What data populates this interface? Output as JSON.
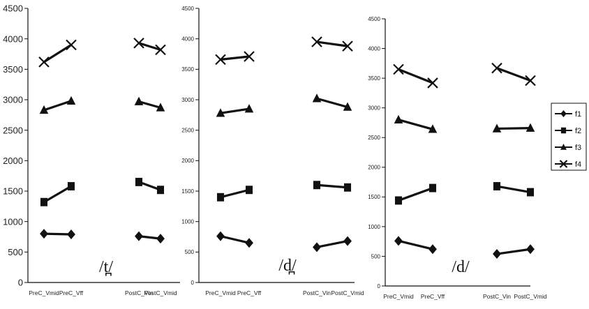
{
  "chart_data": [
    {
      "type": "line",
      "title": "/t̪/",
      "categories": [
        "PreC_Vmid",
        "PreC_Vff",
        "PostC_Vin",
        "PostC_Vmid"
      ],
      "yticks": [
        "0",
        "500",
        "1000",
        "1500",
        "2000",
        "2500",
        "3000",
        "3500",
        "4000",
        "4500"
      ],
      "ylim": [
        0,
        4500
      ],
      "series": [
        {
          "name": "f1",
          "values": [
            800,
            790,
            760,
            720
          ]
        },
        {
          "name": "f2",
          "values": [
            1320,
            1580,
            1650,
            1520
          ]
        },
        {
          "name": "f3",
          "values": [
            2830,
            2980,
            2970,
            2870
          ]
        },
        {
          "name": "f4",
          "values": [
            3620,
            3900,
            3930,
            3820
          ]
        }
      ]
    },
    {
      "type": "line",
      "title": "/d̪/",
      "categories": [
        "PreC_Vmid",
        "PreC_Vff",
        "PostC_Vin",
        "PostC_Vmid"
      ],
      "yticks": [
        "0",
        "500",
        "1000",
        "1500",
        "2000",
        "2500",
        "3000",
        "3500",
        "4000",
        "4500"
      ],
      "ylim": [
        0,
        4500
      ],
      "series": [
        {
          "name": "f1",
          "values": [
            760,
            650,
            580,
            680
          ]
        },
        {
          "name": "f2",
          "values": [
            1400,
            1520,
            1600,
            1560
          ]
        },
        {
          "name": "f3",
          "values": [
            2780,
            2850,
            3020,
            2880
          ]
        },
        {
          "name": "f4",
          "values": [
            3660,
            3710,
            3950,
            3880
          ]
        }
      ]
    },
    {
      "type": "line",
      "title": "/d/",
      "categories": [
        "PreC_Vmid",
        "PreC_Vff",
        "PostC_Vin",
        "PostC_Vmid"
      ],
      "yticks": [
        "0",
        "500",
        "1000",
        "1500",
        "2000",
        "2500",
        "3000",
        "3500",
        "4000",
        "4500"
      ],
      "ylim": [
        0,
        4500
      ],
      "series": [
        {
          "name": "f1",
          "values": [
            760,
            620,
            540,
            620
          ]
        },
        {
          "name": "f2",
          "values": [
            1440,
            1650,
            1680,
            1580
          ]
        },
        {
          "name": "f3",
          "values": [
            2800,
            2640,
            2650,
            2660
          ]
        },
        {
          "name": "f4",
          "values": [
            3650,
            3420,
            3670,
            3460
          ]
        }
      ]
    }
  ],
  "legend": {
    "position": "right",
    "entries": [
      {
        "label": "f1",
        "marker": "diamond"
      },
      {
        "label": "f2",
        "marker": "square"
      },
      {
        "label": "f3",
        "marker": "triangle"
      },
      {
        "label": "f4",
        "marker": "x"
      }
    ]
  },
  "colors": {
    "line": "#111111",
    "background": "#ffffff"
  }
}
